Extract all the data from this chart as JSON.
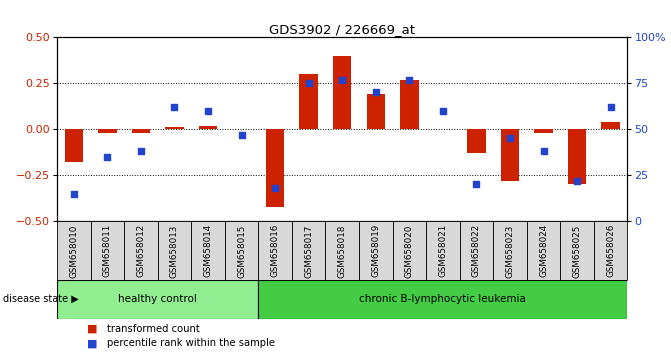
{
  "title": "GDS3902 / 226669_at",
  "samples": [
    "GSM658010",
    "GSM658011",
    "GSM658012",
    "GSM658013",
    "GSM658014",
    "GSM658015",
    "GSM658016",
    "GSM658017",
    "GSM658018",
    "GSM658019",
    "GSM658020",
    "GSM658021",
    "GSM658022",
    "GSM658023",
    "GSM658024",
    "GSM658025",
    "GSM658026"
  ],
  "red_bars": [
    -0.18,
    -0.02,
    -0.02,
    0.01,
    0.02,
    0.0,
    -0.42,
    0.3,
    0.4,
    0.19,
    0.27,
    0.0,
    -0.13,
    -0.28,
    -0.02,
    -0.3,
    0.04
  ],
  "blue_dots_pct": [
    15,
    35,
    38,
    62,
    60,
    47,
    18,
    75,
    77,
    70,
    77,
    60,
    20,
    45,
    38,
    22,
    62
  ],
  "ylim_left": [
    -0.5,
    0.5
  ],
  "ylim_right": [
    0,
    100
  ],
  "yticks_left": [
    -0.5,
    -0.25,
    0.0,
    0.25,
    0.5
  ],
  "yticks_right": [
    0,
    25,
    50,
    75,
    100
  ],
  "group1_label": "healthy control",
  "group1_samples": 6,
  "group2_label": "chronic B-lymphocytic leukemia",
  "group2_samples": 11,
  "group1_color": "#90ee90",
  "group2_color": "#44cc44",
  "disease_state_label": "disease state",
  "bar_color": "#cc2200",
  "dot_color": "#2244cc",
  "bar_width": 0.55,
  "background_color": "#ffffff",
  "tick_label_color_left": "#cc2200",
  "tick_label_color_right": "#2244cc",
  "legend_red": "transformed count",
  "legend_blue": "percentile rank within the sample"
}
